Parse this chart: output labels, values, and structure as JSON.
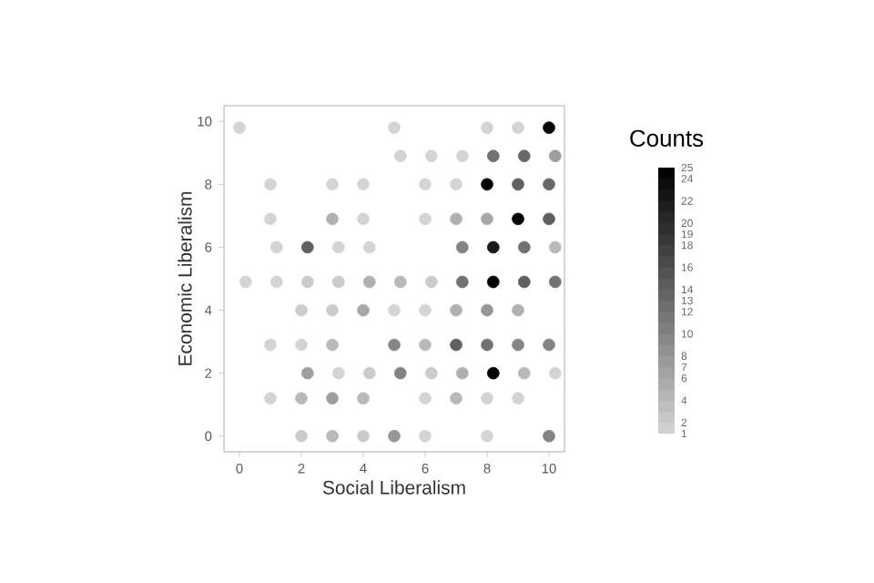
{
  "chart_data": {
    "type": "scatter",
    "xlabel": "Social Liberalism",
    "ylabel": "Economic Liberalism",
    "clabel": "Counts",
    "xlim": [
      -0.5,
      10.5
    ],
    "ylim": [
      -0.5,
      10.5
    ],
    "xticks": [
      0,
      2,
      4,
      6,
      8,
      10
    ],
    "yticks": [
      0,
      2,
      4,
      6,
      8,
      10
    ],
    "grid": false,
    "marker": "circle",
    "clim": [
      1,
      25
    ],
    "cticks": [
      1,
      2,
      4,
      6,
      7,
      8,
      10,
      12,
      13,
      14,
      16,
      18,
      19,
      20,
      22,
      24,
      25
    ],
    "x": [
      0,
      5,
      8,
      9,
      10,
      5.2,
      6.2,
      7.2,
      8.2,
      9.2,
      10.2,
      1,
      3,
      4,
      6,
      7,
      8,
      9,
      10,
      1,
      3,
      4,
      6,
      7,
      8,
      9,
      10,
      1.2,
      2.2,
      3.2,
      4.2,
      7.2,
      8.2,
      9.2,
      10.2,
      0.2,
      1.2,
      2.2,
      3.2,
      4.2,
      5.2,
      6.2,
      7.2,
      8.2,
      9.2,
      10.2,
      2,
      3,
      4,
      5,
      6,
      7,
      8,
      9,
      1,
      2,
      3,
      5,
      6,
      7,
      8,
      9,
      10,
      2.2,
      3.2,
      4.2,
      5.2,
      6.2,
      7.2,
      8.2,
      9.2,
      10.2,
      1,
      2,
      3,
      4,
      6,
      7,
      8,
      9,
      2,
      3,
      4,
      5,
      6,
      8,
      10
    ],
    "values": [
      9.8,
      9.8,
      9.8,
      9.8,
      9.8,
      8.9,
      8.9,
      8.9,
      8.9,
      8.9,
      8.9,
      8.0,
      8.0,
      8.0,
      8.0,
      8.0,
      8.0,
      8.0,
      8.0,
      6.9,
      6.9,
      6.9,
      6.9,
      6.9,
      6.9,
      6.9,
      6.9,
      6.0,
      6.0,
      6.0,
      6.0,
      6.0,
      6.0,
      6.0,
      6.0,
      4.9,
      4.9,
      4.9,
      4.9,
      4.9,
      4.9,
      4.9,
      4.9,
      4.9,
      4.9,
      4.9,
      4.0,
      4.0,
      4.0,
      4.0,
      4.0,
      4.0,
      4.0,
      4.0,
      2.9,
      2.9,
      2.9,
      2.9,
      2.9,
      2.9,
      2.9,
      2.9,
      2.9,
      2.0,
      2.0,
      2.0,
      2.0,
      2.0,
      2.0,
      2.0,
      2.0,
      2.0,
      1.2,
      1.2,
      1.2,
      1.2,
      1.2,
      1.2,
      1.2,
      1.2,
      0,
      0,
      0,
      0,
      0,
      0,
      0
    ],
    "cvalues": [
      1,
      1,
      1,
      1,
      24,
      1,
      1,
      1,
      12,
      13,
      7,
      1,
      1,
      1,
      1,
      1,
      25,
      14,
      13,
      1,
      5,
      1,
      1,
      5,
      6,
      25,
      14,
      1,
      14,
      1,
      1,
      10,
      22,
      12,
      4,
      1,
      1,
      2,
      2,
      5,
      4,
      2,
      12,
      25,
      14,
      12,
      2,
      2,
      6,
      1,
      1,
      5,
      8,
      5,
      1,
      1,
      4,
      10,
      4,
      14,
      12,
      10,
      10,
      7,
      1,
      2,
      10,
      2,
      5,
      25,
      4,
      1,
      1,
      4,
      7,
      4,
      1,
      4,
      1,
      1,
      2,
      4,
      2,
      8,
      1,
      1,
      10
    ]
  }
}
